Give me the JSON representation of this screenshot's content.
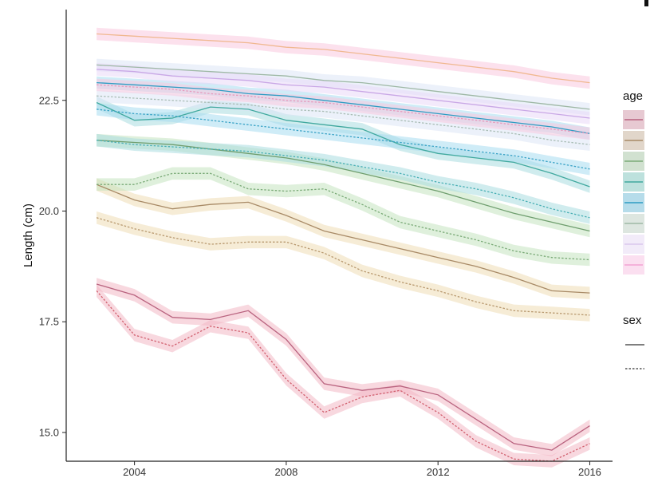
{
  "chart_data": {
    "type": "line",
    "title": "",
    "xlabel": "",
    "ylabel": "Length (cm)",
    "xlim": [
      2002.2,
      2016.6
    ],
    "ylim": [
      14.35,
      24.55
    ],
    "x_ticks": [
      2004,
      2008,
      2012,
      2016
    ],
    "x_tick_labels": [
      "2004",
      "2008",
      "2012",
      "2016"
    ],
    "y_ticks": [
      15.0,
      17.5,
      20.0,
      22.5
    ],
    "y_tick_labels": [
      "15.0",
      "17.5",
      "20.0",
      "22.5"
    ],
    "grid": false,
    "legend": [
      {
        "title": "age",
        "entries": [
          "",
          "",
          "",
          "",
          "",
          "",
          "",
          ""
        ],
        "colors": [
          "#B9637F",
          "#A88A66",
          "#7AAA77",
          "#41A99F",
          "#2D9CC3",
          "#9EB8A5",
          "#D9C7EE",
          "#F3A3D3"
        ]
      },
      {
        "title": "sex",
        "entries": [
          "",
          ""
        ],
        "line_styles": [
          "solid",
          "dotted"
        ]
      }
    ],
    "legend_placement": "right",
    "x": [
      2003,
      2004,
      2005,
      2006,
      2007,
      2008,
      2009,
      2010,
      2011,
      2012,
      2013,
      2014,
      2015,
      2016
    ],
    "series": [
      {
        "age_group": 1,
        "sex": "solid",
        "color": "#B9637F",
        "band": "#F2B8C4",
        "values": [
          18.35,
          18.1,
          17.6,
          17.55,
          17.75,
          17.1,
          16.1,
          15.95,
          16.05,
          15.85,
          15.3,
          14.75,
          14.6,
          15.15
        ]
      },
      {
        "age_group": 1,
        "sex": "dotted",
        "color": "#D1606F",
        "band": "#F2B8C4",
        "values": [
          18.2,
          17.2,
          16.95,
          17.4,
          17.25,
          16.2,
          15.45,
          15.8,
          15.95,
          15.45,
          14.8,
          14.4,
          14.35,
          14.75
        ]
      },
      {
        "age_group": 2,
        "sex": "solid",
        "color": "#A88A66",
        "band": "#EEDCB5",
        "values": [
          20.6,
          20.25,
          20.05,
          20.15,
          20.2,
          19.9,
          19.55,
          19.35,
          19.15,
          18.95,
          18.75,
          18.5,
          18.2,
          18.15
        ]
      },
      {
        "age_group": 2,
        "sex": "dotted",
        "color": "#B8996F",
        "band": "#EEDCB5",
        "values": [
          19.85,
          19.6,
          19.4,
          19.25,
          19.3,
          19.3,
          19.05,
          18.65,
          18.4,
          18.2,
          17.95,
          17.75,
          17.7,
          17.65
        ]
      },
      {
        "age_group": 3,
        "sex": "solid",
        "color": "#6F9E6E",
        "band": "#C5E3C0",
        "values": [
          21.6,
          21.55,
          21.5,
          21.4,
          21.3,
          21.2,
          21.05,
          20.85,
          20.65,
          20.45,
          20.2,
          19.95,
          19.75,
          19.55
        ]
      },
      {
        "age_group": 3,
        "sex": "dotted",
        "color": "#7AAA77",
        "band": "#C5E3C0",
        "values": [
          20.6,
          20.6,
          20.85,
          20.85,
          20.5,
          20.45,
          20.5,
          20.15,
          19.75,
          19.55,
          19.35,
          19.1,
          18.95,
          18.9
        ]
      },
      {
        "age_group": 4,
        "sex": "solid",
        "color": "#41A99F",
        "band": "#A9DDE0",
        "values": [
          22.45,
          22.05,
          22.1,
          22.35,
          22.3,
          22.05,
          21.95,
          21.85,
          21.5,
          21.3,
          21.2,
          21.1,
          20.85,
          20.55
        ]
      },
      {
        "age_group": 4,
        "sex": "dotted",
        "color": "#4AB0B5",
        "band": "#A9DDE0",
        "values": [
          21.6,
          21.5,
          21.45,
          21.4,
          21.35,
          21.25,
          21.15,
          21.0,
          20.85,
          20.65,
          20.5,
          20.3,
          20.05,
          19.85
        ]
      },
      {
        "age_group": 5,
        "sex": "solid",
        "color": "#2D9CC3",
        "band": "#A7DDF0",
        "values": [
          22.9,
          22.85,
          22.8,
          22.75,
          22.65,
          22.6,
          22.5,
          22.4,
          22.3,
          22.2,
          22.1,
          22.0,
          21.9,
          21.75
        ]
      },
      {
        "age_group": 5,
        "sex": "dotted",
        "color": "#3AA3C6",
        "band": "#A7DDF0",
        "values": [
          22.3,
          22.2,
          22.15,
          22.05,
          21.95,
          21.85,
          21.75,
          21.65,
          21.55,
          21.45,
          21.35,
          21.25,
          21.1,
          20.95
        ]
      },
      {
        "age_group": 6,
        "sex": "solid",
        "color": "#9EB8A5",
        "band": "#DDE6F6",
        "values": [
          23.3,
          23.25,
          23.2,
          23.15,
          23.1,
          23.05,
          22.95,
          22.9,
          22.8,
          22.7,
          22.6,
          22.5,
          22.4,
          22.3
        ]
      },
      {
        "age_group": 6,
        "sex": "dotted",
        "color": "#A9BDB5",
        "band": "#DDE6F6",
        "values": [
          22.6,
          22.55,
          22.5,
          22.45,
          22.4,
          22.3,
          22.25,
          22.15,
          22.05,
          21.95,
          21.85,
          21.75,
          21.6,
          21.5
        ]
      },
      {
        "age_group": 7,
        "sex": "solid",
        "color": "#C9A8E6",
        "band": "#E9D9F7",
        "values": [
          23.2,
          23.15,
          23.05,
          23.0,
          22.95,
          22.85,
          22.8,
          22.7,
          22.6,
          22.5,
          22.4,
          22.3,
          22.2,
          22.1
        ]
      },
      {
        "age_group": 8,
        "sex": "solid",
        "color": "#F0B890",
        "band": "#F9C8DE",
        "values": [
          24.0,
          23.95,
          23.9,
          23.85,
          23.8,
          23.7,
          23.65,
          23.55,
          23.45,
          23.35,
          23.25,
          23.15,
          23.0,
          22.9
        ]
      },
      {
        "age_group": 8,
        "sex": "dotted",
        "color": "#E79ABD",
        "band": "#F9C8DE",
        "values": [
          22.85,
          22.8,
          22.75,
          22.65,
          22.6,
          22.5,
          22.45,
          22.35,
          22.25,
          22.15,
          22.05,
          21.95,
          21.85,
          21.75
        ]
      }
    ]
  }
}
